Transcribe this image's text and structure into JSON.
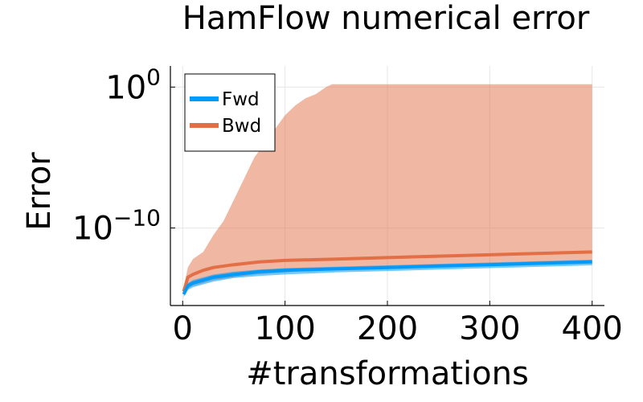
{
  "chart_data": {
    "type": "line",
    "title": "HamFlow numerical error",
    "xlabel": "#transformations",
    "ylabel": "Error",
    "x_ticks": [
      "0",
      "100",
      "200",
      "300",
      "400"
    ],
    "x_tick_values": [
      0,
      100,
      200,
      300,
      400
    ],
    "xlim": [
      -12,
      412
    ],
    "y_scale": "log",
    "y_ticks": [
      {
        "base": "10",
        "exponent": "0",
        "value": 1
      },
      {
        "base": "10",
        "exponent": "−10",
        "value": 1e-10
      }
    ],
    "ylim_log10": [
      -15.5,
      1.5
    ],
    "grid": true,
    "legend_position": "top-left",
    "series": [
      {
        "name": "Fwd",
        "color": "#009af9",
        "x": [
          1,
          5,
          10,
          20,
          30,
          50,
          75,
          100,
          150,
          200,
          250,
          300,
          350,
          400
        ],
        "y_log10": [
          -14.7,
          -14.1,
          -13.9,
          -13.7,
          -13.5,
          -13.3,
          -13.1,
          -13.0,
          -12.9,
          -12.8,
          -12.7,
          -12.6,
          -12.5,
          -12.4
        ],
        "band_log10": {
          "x": [
            1,
            5,
            10,
            20,
            30,
            50,
            75,
            100,
            150,
            200,
            250,
            300,
            350,
            400
          ],
          "lower": [
            -14.9,
            -14.4,
            -14.2,
            -14.0,
            -13.8,
            -13.55,
            -13.4,
            -13.3,
            -13.15,
            -13.05,
            -12.95,
            -12.85,
            -12.75,
            -12.65
          ],
          "upper": [
            -14.5,
            -13.9,
            -13.7,
            -13.5,
            -13.3,
            -13.1,
            -12.95,
            -12.85,
            -12.75,
            -12.65,
            -12.55,
            -12.45,
            -12.35,
            -12.25
          ]
        }
      },
      {
        "name": "Bwd",
        "color": "#e26f46",
        "x": [
          1,
          5,
          10,
          20,
          30,
          50,
          75,
          100,
          150,
          200,
          250,
          300,
          350,
          400
        ],
        "y_log10": [
          -14.5,
          -13.5,
          -13.3,
          -13.0,
          -12.8,
          -12.6,
          -12.4,
          -12.3,
          -12.2,
          -12.1,
          -12.0,
          -11.9,
          -11.8,
          -11.7
        ],
        "band_log10": {
          "x": [
            1,
            5,
            10,
            20,
            30,
            40,
            50,
            60,
            70,
            80,
            90,
            100,
            110,
            120,
            130,
            140,
            146,
            150,
            155,
            160,
            200,
            250,
            300,
            350,
            400
          ],
          "lower": [
            -14.8,
            -14.3,
            -14.1,
            -13.9,
            -13.7,
            -13.6,
            -13.5,
            -13.4,
            -13.3,
            -13.25,
            -13.2,
            -13.15,
            -13.1,
            -13.05,
            -13.0,
            -12.95,
            -12.9,
            -12.9,
            -12.85,
            -12.85,
            -12.75,
            -12.65,
            -12.55,
            -12.45,
            -12.35
          ],
          "upper": [
            -14.2,
            -12.8,
            -12.2,
            -11.7,
            -10.5,
            -9.5,
            -8.0,
            -6.5,
            -5.0,
            -4.0,
            -3.0,
            -2.0,
            -1.3,
            -0.8,
            -0.5,
            0.0,
            0.2,
            0.2,
            0.2,
            0.2,
            0.2,
            0.2,
            0.2,
            0.2,
            0.2
          ]
        }
      }
    ]
  }
}
